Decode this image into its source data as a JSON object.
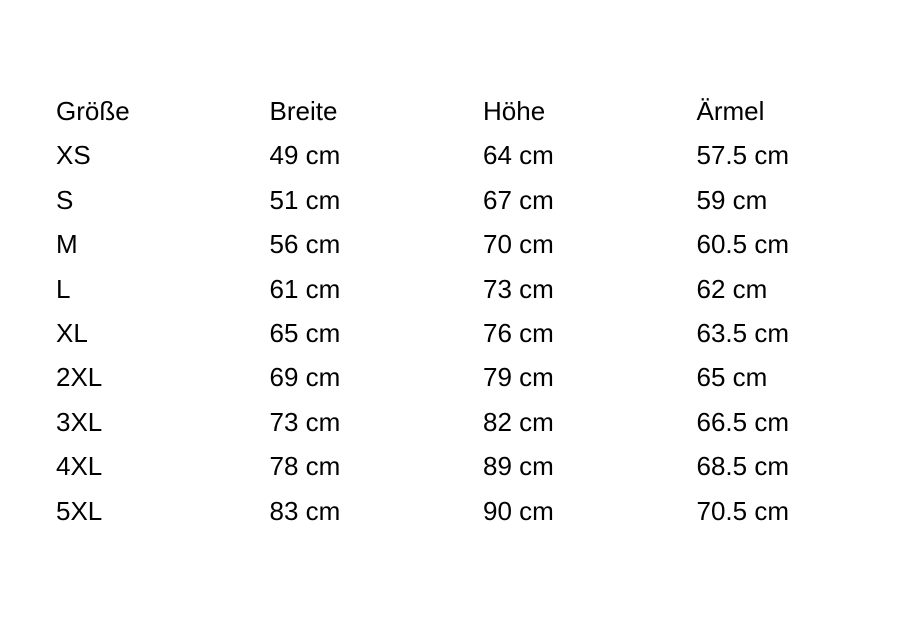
{
  "table": {
    "headers": [
      "Größe",
      "Breite",
      "Höhe",
      "Ärmel"
    ],
    "rows": [
      [
        "XS",
        "49 cm",
        "64 cm",
        "57.5 cm"
      ],
      [
        "S",
        "51 cm",
        "67 cm",
        "59 cm"
      ],
      [
        "M",
        "56 cm",
        "70 cm",
        "60.5 cm"
      ],
      [
        "L",
        "61 cm",
        "73 cm",
        "62 cm"
      ],
      [
        "XL",
        "65 cm",
        "76 cm",
        "63.5 cm"
      ],
      [
        "2XL",
        "69 cm",
        "79 cm",
        "65 cm"
      ],
      [
        "3XL",
        "73 cm",
        "82 cm",
        "66.5 cm"
      ],
      [
        "4XL",
        "78 cm",
        "89 cm",
        "68.5 cm"
      ],
      [
        "5XL",
        "83 cm",
        "90 cm",
        "70.5 cm"
      ]
    ]
  }
}
